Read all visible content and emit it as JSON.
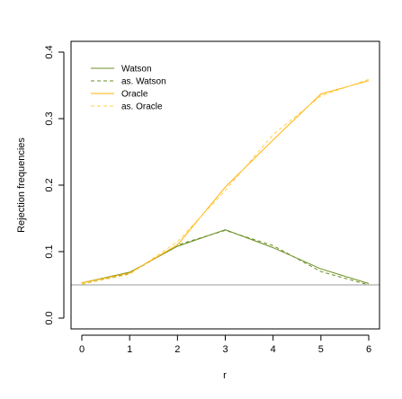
{
  "chart_data": {
    "type": "line",
    "xlabel": "r",
    "ylabel": "Rejection frequencies",
    "xlim": [
      0,
      6
    ],
    "ylim": [
      0.0,
      0.4
    ],
    "x_ticks": [
      "0",
      "1",
      "2",
      "3",
      "4",
      "5",
      "6"
    ],
    "y_ticks": [
      "0.0",
      "0.1",
      "0.2",
      "0.3",
      "0.4"
    ],
    "reference_line": {
      "y": 0.05,
      "color": "#999999"
    },
    "legend_position": "top-left",
    "x": [
      0,
      1,
      2,
      3,
      4,
      5,
      6
    ],
    "series": [
      {
        "name": "Watson",
        "color": "#6b8e23",
        "dash": "solid",
        "values": [
          0.053,
          0.069,
          0.108,
          0.133,
          0.106,
          0.074,
          0.052
        ]
      },
      {
        "name": "as. Watson",
        "color": "#6b8e23",
        "dash": "dashed",
        "values": [
          0.051,
          0.067,
          0.11,
          0.132,
          0.109,
          0.07,
          0.05
        ]
      },
      {
        "name": "Oracle",
        "color": "#ffb000",
        "dash": "solid",
        "values": [
          0.053,
          0.068,
          0.11,
          0.197,
          0.268,
          0.337,
          0.357
        ]
      },
      {
        "name": "as. Oracle",
        "color": "#ffd24a",
        "dash": "dashed",
        "values": [
          0.051,
          0.066,
          0.115,
          0.192,
          0.276,
          0.334,
          0.359
        ]
      }
    ]
  }
}
